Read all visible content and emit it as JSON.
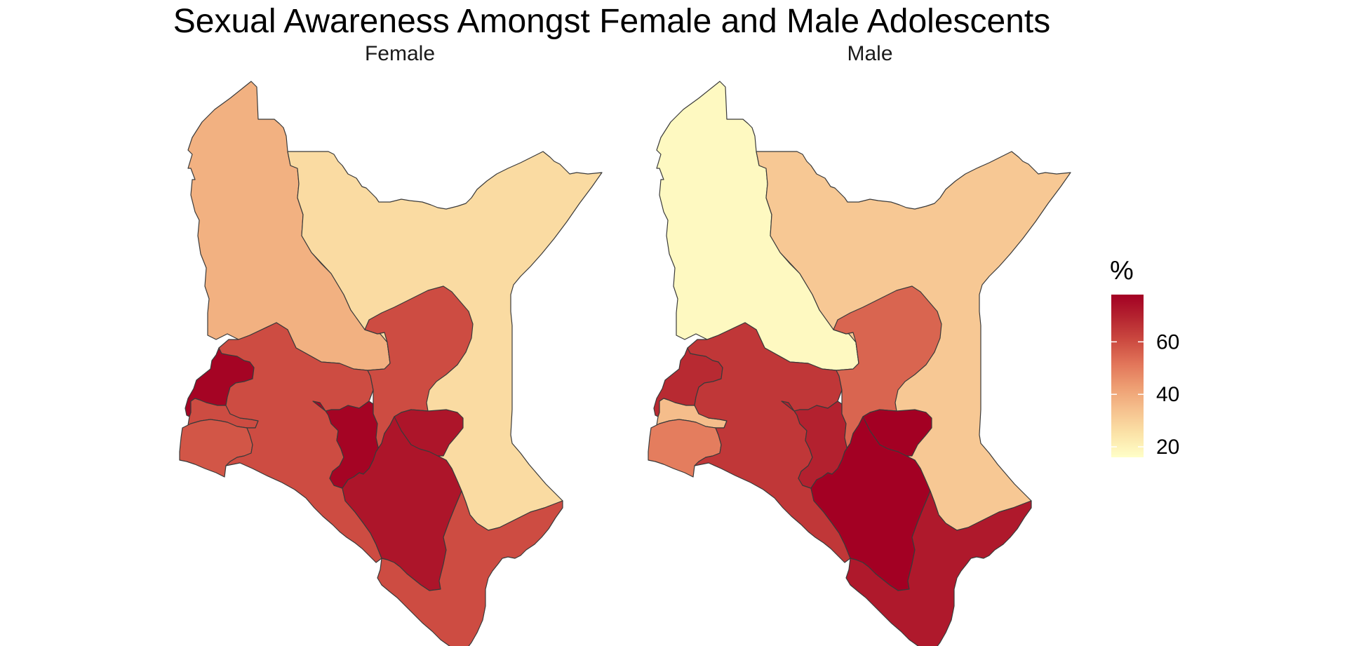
{
  "title": "Sexual Awareness Amongst Female and Male Adolescents",
  "panels": [
    {
      "label": "Female",
      "regions": {
        "north_west": 38,
        "north_east": 27,
        "far_west": 77,
        "west_mid": 60,
        "west_low": 58,
        "rift_valley": 60,
        "central": 77,
        "east_mid": 60,
        "eastern": 73,
        "coast": 60
      }
    },
    {
      "label": "Male",
      "regions": {
        "north_west": 18,
        "north_east": 32,
        "far_west": 68,
        "west_mid": 35,
        "west_low": 50,
        "rift_valley": 65,
        "central": 70,
        "east_mid": 55,
        "eastern": 78,
        "coast": 72
      }
    }
  ],
  "legend": {
    "title": "%",
    "ticks": [
      20,
      40,
      60
    ],
    "min": 16,
    "max": 78,
    "palette": [
      "#FFFFC8",
      "#FBE3A8",
      "#F6C28F",
      "#EE9F73",
      "#E2765A",
      "#CC4B41",
      "#B52530",
      "#A30023"
    ]
  },
  "chart_data": {
    "type": "choropleth",
    "title": "Sexual Awareness Amongst Female and Male Adolescents",
    "legend_title": "%",
    "legend_ticks": [
      20,
      40,
      60
    ],
    "value_range": [
      16,
      78
    ],
    "series": [
      {
        "name": "Female",
        "values": [
          38,
          27,
          77,
          60,
          58,
          60,
          77,
          60,
          73,
          60
        ]
      },
      {
        "name": "Male",
        "values": [
          18,
          32,
          68,
          35,
          50,
          65,
          70,
          55,
          78,
          72
        ]
      }
    ]
  }
}
